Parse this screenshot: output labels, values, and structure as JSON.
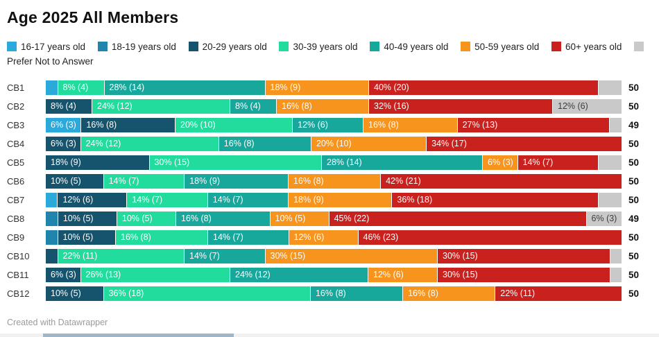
{
  "title": "Age 2025 All Members",
  "footer": "Created with Datawrapper",
  "legend": [
    {
      "label": "16-17 years old",
      "color": "#2BA9DB"
    },
    {
      "label": "18-19 years old",
      "color": "#1F85AC"
    },
    {
      "label": "20-29 years old",
      "color": "#16536D"
    },
    {
      "label": "30-39 years old",
      "color": "#21DC9D"
    },
    {
      "label": "40-49 years old",
      "color": "#17A79B"
    },
    {
      "label": "50-59 years old",
      "color": "#F7941E"
    },
    {
      "label": "60+ years old",
      "color": "#C9211E"
    },
    {
      "label": "Prefer Not to Answer",
      "color": "#C9C9C9"
    }
  ],
  "colors": {
    "label_on_segment": "#ffffff",
    "label_on_gray": "#3d3d3d",
    "scrollbar_track": "#f1f1f1",
    "scrollbar_thumb": "#9fb6c9"
  },
  "chart_data": {
    "type": "bar",
    "stacked": true,
    "orientation": "horizontal",
    "value_format": "pct (count)",
    "categories": [
      "CB1",
      "CB2",
      "CB3",
      "CB4",
      "CB5",
      "CB6",
      "CB7",
      "CB8",
      "CB9",
      "CB10",
      "CB11",
      "CB12"
    ],
    "series_keys": [
      "16-17 years old",
      "18-19 years old",
      "20-29 years old",
      "30-39 years old",
      "40-49 years old",
      "50-59 years old",
      "60+ years old",
      "Prefer Not to Answer"
    ],
    "rows": [
      {
        "label": "CB1",
        "total": 50,
        "segments": [
          {
            "group": 0,
            "pct": 2,
            "count": 1,
            "text": ""
          },
          {
            "group": 3,
            "pct": 8,
            "count": 4,
            "text": "8% (4)"
          },
          {
            "group": 4,
            "pct": 28,
            "count": 14,
            "text": "28% (14)"
          },
          {
            "group": 5,
            "pct": 18,
            "count": 9,
            "text": "18% (9)"
          },
          {
            "group": 6,
            "pct": 40,
            "count": 20,
            "text": "40% (20)"
          },
          {
            "group": 7,
            "pct": 4,
            "count": 2,
            "text": ""
          }
        ]
      },
      {
        "label": "CB2",
        "total": 50,
        "segments": [
          {
            "group": 2,
            "pct": 8,
            "count": 4,
            "text": "8% (4)"
          },
          {
            "group": 3,
            "pct": 24,
            "count": 12,
            "text": "24% (12)"
          },
          {
            "group": 4,
            "pct": 8,
            "count": 4,
            "text": "8% (4)"
          },
          {
            "group": 5,
            "pct": 16,
            "count": 8,
            "text": "16% (8)"
          },
          {
            "group": 6,
            "pct": 32,
            "count": 16,
            "text": "32% (16)"
          },
          {
            "group": 7,
            "pct": 12,
            "count": 6,
            "text": "12% (6)"
          }
        ]
      },
      {
        "label": "CB3",
        "total": 49,
        "segments": [
          {
            "group": 0,
            "pct": 6,
            "count": 3,
            "text": "6% (3)"
          },
          {
            "group": 2,
            "pct": 16,
            "count": 8,
            "text": "16% (8)"
          },
          {
            "group": 3,
            "pct": 20,
            "count": 10,
            "text": "20% (10)"
          },
          {
            "group": 4,
            "pct": 12,
            "count": 6,
            "text": "12% (6)"
          },
          {
            "group": 5,
            "pct": 16,
            "count": 8,
            "text": "16% (8)"
          },
          {
            "group": 6,
            "pct": 27,
            "count": 13,
            "text": "27% (13)"
          },
          {
            "group": 7,
            "pct": 2,
            "count": 1,
            "text": ""
          }
        ]
      },
      {
        "label": "CB4",
        "total": 50,
        "segments": [
          {
            "group": 2,
            "pct": 6,
            "count": 3,
            "text": "6% (3)"
          },
          {
            "group": 3,
            "pct": 24,
            "count": 12,
            "text": "24% (12)"
          },
          {
            "group": 4,
            "pct": 16,
            "count": 8,
            "text": "16% (8)"
          },
          {
            "group": 5,
            "pct": 20,
            "count": 10,
            "text": "20% (10)"
          },
          {
            "group": 6,
            "pct": 34,
            "count": 17,
            "text": "34% (17)"
          }
        ]
      },
      {
        "label": "CB5",
        "total": 50,
        "segments": [
          {
            "group": 2,
            "pct": 18,
            "count": 9,
            "text": "18% (9)"
          },
          {
            "group": 3,
            "pct": 30,
            "count": 15,
            "text": "30% (15)"
          },
          {
            "group": 4,
            "pct": 28,
            "count": 14,
            "text": "28% (14)"
          },
          {
            "group": 5,
            "pct": 6,
            "count": 3,
            "text": "6% (3)"
          },
          {
            "group": 6,
            "pct": 14,
            "count": 7,
            "text": "14% (7)"
          },
          {
            "group": 7,
            "pct": 4,
            "count": 2,
            "text": ""
          }
        ]
      },
      {
        "label": "CB6",
        "total": 50,
        "segments": [
          {
            "group": 2,
            "pct": 10,
            "count": 5,
            "text": "10% (5)"
          },
          {
            "group": 3,
            "pct": 14,
            "count": 7,
            "text": "14% (7)"
          },
          {
            "group": 4,
            "pct": 18,
            "count": 9,
            "text": "18% (9)"
          },
          {
            "group": 5,
            "pct": 16,
            "count": 8,
            "text": "16% (8)"
          },
          {
            "group": 6,
            "pct": 42,
            "count": 21,
            "text": "42% (21)"
          }
        ]
      },
      {
        "label": "CB7",
        "total": 50,
        "segments": [
          {
            "group": 0,
            "pct": 2,
            "count": 1,
            "text": ""
          },
          {
            "group": 2,
            "pct": 12,
            "count": 6,
            "text": "12% (6)"
          },
          {
            "group": 3,
            "pct": 14,
            "count": 7,
            "text": "14% (7)"
          },
          {
            "group": 4,
            "pct": 14,
            "count": 7,
            "text": "14% (7)"
          },
          {
            "group": 5,
            "pct": 18,
            "count": 9,
            "text": "18% (9)"
          },
          {
            "group": 6,
            "pct": 36,
            "count": 18,
            "text": "36% (18)"
          },
          {
            "group": 7,
            "pct": 4,
            "count": 2,
            "text": ""
          }
        ]
      },
      {
        "label": "CB8",
        "total": 49,
        "segments": [
          {
            "group": 1,
            "pct": 2,
            "count": 1,
            "text": ""
          },
          {
            "group": 2,
            "pct": 10,
            "count": 5,
            "text": "10% (5)"
          },
          {
            "group": 3,
            "pct": 10,
            "count": 5,
            "text": "10% (5)"
          },
          {
            "group": 4,
            "pct": 16,
            "count": 8,
            "text": "16% (8)"
          },
          {
            "group": 5,
            "pct": 10,
            "count": 5,
            "text": "10% (5)"
          },
          {
            "group": 6,
            "pct": 45,
            "count": 22,
            "text": "45% (22)"
          },
          {
            "group": 7,
            "pct": 6,
            "count": 3,
            "text": "6% (3)"
          }
        ]
      },
      {
        "label": "CB9",
        "total": 50,
        "segments": [
          {
            "group": 1,
            "pct": 2,
            "count": 1,
            "text": ""
          },
          {
            "group": 2,
            "pct": 10,
            "count": 5,
            "text": "10% (5)"
          },
          {
            "group": 3,
            "pct": 16,
            "count": 8,
            "text": "16% (8)"
          },
          {
            "group": 4,
            "pct": 14,
            "count": 7,
            "text": "14% (7)"
          },
          {
            "group": 5,
            "pct": 12,
            "count": 6,
            "text": "12% (6)"
          },
          {
            "group": 6,
            "pct": 46,
            "count": 23,
            "text": "46% (23)"
          }
        ]
      },
      {
        "label": "CB10",
        "total": 50,
        "segments": [
          {
            "group": 2,
            "pct": 2,
            "count": 1,
            "text": ""
          },
          {
            "group": 3,
            "pct": 22,
            "count": 11,
            "text": "22% (11)"
          },
          {
            "group": 4,
            "pct": 14,
            "count": 7,
            "text": "14% (7)"
          },
          {
            "group": 5,
            "pct": 30,
            "count": 15,
            "text": "30% (15)"
          },
          {
            "group": 6,
            "pct": 30,
            "count": 15,
            "text": "30% (15)"
          },
          {
            "group": 7,
            "pct": 2,
            "count": 1,
            "text": ""
          }
        ]
      },
      {
        "label": "CB11",
        "total": 50,
        "segments": [
          {
            "group": 2,
            "pct": 6,
            "count": 3,
            "text": "6% (3)"
          },
          {
            "group": 3,
            "pct": 26,
            "count": 13,
            "text": "26% (13)"
          },
          {
            "group": 4,
            "pct": 24,
            "count": 12,
            "text": "24% (12)"
          },
          {
            "group": 5,
            "pct": 12,
            "count": 6,
            "text": "12% (6)"
          },
          {
            "group": 6,
            "pct": 30,
            "count": 15,
            "text": "30% (15)"
          },
          {
            "group": 7,
            "pct": 2,
            "count": 1,
            "text": ""
          }
        ]
      },
      {
        "label": "CB12",
        "total": 50,
        "segments": [
          {
            "group": 2,
            "pct": 10,
            "count": 5,
            "text": "10% (5)"
          },
          {
            "group": 3,
            "pct": 36,
            "count": 18,
            "text": "36% (18)"
          },
          {
            "group": 4,
            "pct": 16,
            "count": 8,
            "text": "16% (8)"
          },
          {
            "group": 5,
            "pct": 16,
            "count": 8,
            "text": "16% (8)"
          },
          {
            "group": 6,
            "pct": 22,
            "count": 11,
            "text": "22% (11)"
          }
        ]
      }
    ]
  }
}
